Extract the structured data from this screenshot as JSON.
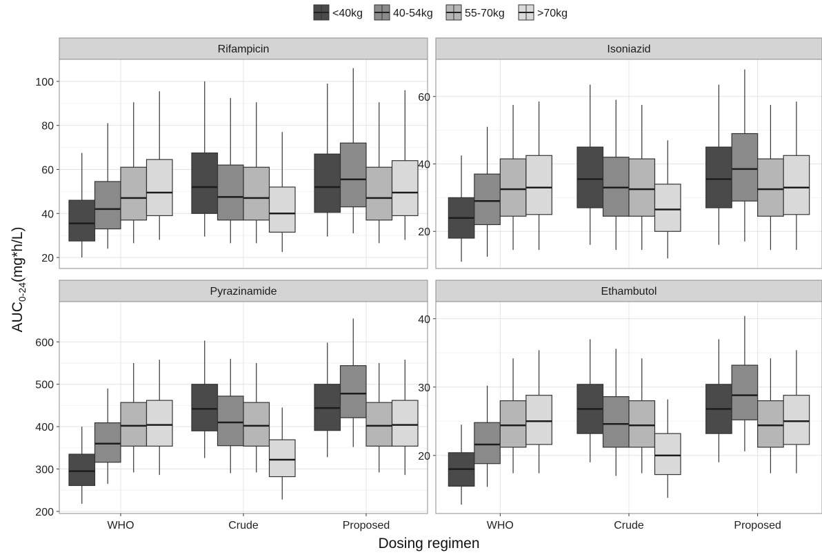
{
  "chart_data": {
    "type": "boxplot",
    "legend": {
      "placement": "top",
      "items": [
        {
          "label": "<40kg",
          "color": "#4a4a4a"
        },
        {
          "label": "40-54kg",
          "color": "#8a8a8a"
        },
        {
          "label": "55-70kg",
          "color": "#b6b6b6"
        },
        {
          "label": ">70kg",
          "color": "#d9d9d9"
        }
      ]
    },
    "xlabel": "Dosing regimen",
    "ylabel": {
      "main": "AUC",
      "sub": "0-24",
      "rest": "(mg*h/L)"
    },
    "categories": [
      "WHO",
      "Crude",
      "Proposed"
    ],
    "grid": true,
    "panels": [
      {
        "title": "Rifampicin",
        "ylim": [
          15,
          110
        ],
        "yticks": [
          20,
          40,
          60,
          80,
          100
        ],
        "boxes": [
          [
            [
              20,
              27.5,
              35.5,
              46,
              67.5
            ],
            [
              24,
              33,
              42,
              54.5,
              81
            ],
            [
              26.5,
              37,
              47,
              61,
              90.5
            ],
            [
              28,
              39,
              49.5,
              64.5,
              95.5
            ]
          ],
          [
            [
              29.5,
              40,
              52,
              67.5,
              100
            ],
            [
              26.5,
              37,
              47.5,
              62,
              92.5
            ],
            [
              26.5,
              37,
              47,
              61,
              90.5
            ],
            [
              22.5,
              31.5,
              40,
              52,
              77
            ]
          ],
          [
            [
              29.5,
              40.5,
              52,
              67,
              99
            ],
            [
              31,
              43,
              55.5,
              72,
              106
            ],
            [
              26.5,
              37,
              47,
              61,
              90.5
            ],
            [
              28,
              39,
              49.5,
              64,
              96
            ]
          ]
        ]
      },
      {
        "title": "Isoniazid",
        "ylim": [
          9,
          71
        ],
        "yticks": [
          20,
          40,
          60
        ],
        "boxes": [
          [
            [
              11,
              18,
              24,
              30,
              42.5
            ],
            [
              12.5,
              22,
              29,
              37,
              51
            ],
            [
              14.5,
              24.5,
              32.5,
              41.5,
              57.5
            ],
            [
              14.5,
              25,
              33,
              42.5,
              58.5
            ]
          ],
          [
            [
              16,
              27,
              35.5,
              45,
              63.5
            ],
            [
              14.5,
              24.5,
              33,
              42,
              59
            ],
            [
              14.5,
              24.5,
              32.5,
              41.5,
              57.5
            ],
            [
              12,
              20,
              26.5,
              34,
              47
            ]
          ],
          [
            [
              16,
              27,
              35.5,
              45,
              63.5
            ],
            [
              17,
              29,
              38.5,
              49,
              68
            ],
            [
              14.5,
              24.5,
              32.5,
              41.5,
              57.5
            ],
            [
              14.5,
              25,
              33,
              42.5,
              58.5
            ]
          ]
        ]
      },
      {
        "title": "Pyrazinamide",
        "ylim": [
          195,
          695
        ],
        "yticks": [
          200,
          300,
          400,
          500,
          600
        ],
        "boxes": [
          [
            [
              218,
              261,
              295,
              335,
              400
            ],
            [
              265,
              316,
              360,
              409,
              490
            ],
            [
              292,
              354,
              402,
              457,
              550
            ],
            [
              286,
              354,
              404,
              462,
              558
            ]
          ],
          [
            [
              326,
              390,
              442,
              500,
              603
            ],
            [
              290,
              355,
              410,
              472,
              560
            ],
            [
              292,
              354,
              402,
              457,
              550
            ],
            [
              228,
              282,
              322,
              369,
              445
            ]
          ],
          [
            [
              328,
              391,
              444,
              500,
              598
            ],
            [
              352,
              421,
              478,
              544,
              655
            ],
            [
              292,
              354,
              402,
              457,
              550
            ],
            [
              286,
              354,
              404,
              462,
              558
            ]
          ]
        ]
      },
      {
        "title": "Ethambutol",
        "ylim": [
          11.5,
          42.5
        ],
        "yticks": [
          20,
          30,
          40
        ],
        "boxes": [
          [
            [
              12.8,
              15.5,
              18,
              20.4,
              24.5
            ],
            [
              15.4,
              18.8,
              21.6,
              24.8,
              30.2
            ],
            [
              17.4,
              21.2,
              24.4,
              28,
              34.2
            ],
            [
              17.4,
              21.6,
              25,
              28.8,
              35.4
            ]
          ],
          [
            [
              19,
              23.2,
              26.8,
              30.4,
              37
            ],
            [
              17,
              21.2,
              24.6,
              28.6,
              35.6
            ],
            [
              17.4,
              21.2,
              24.4,
              28,
              34.2
            ],
            [
              13.8,
              17.2,
              20,
              23.2,
              28.2
            ]
          ],
          [
            [
              19,
              23.2,
              26.8,
              30.4,
              37
            ],
            [
              20.6,
              25.2,
              28.8,
              33.2,
              40.4
            ],
            [
              17.4,
              21.2,
              24.4,
              28,
              34.2
            ],
            [
              17.4,
              21.6,
              25,
              28.8,
              35.4
            ]
          ]
        ]
      }
    ]
  }
}
